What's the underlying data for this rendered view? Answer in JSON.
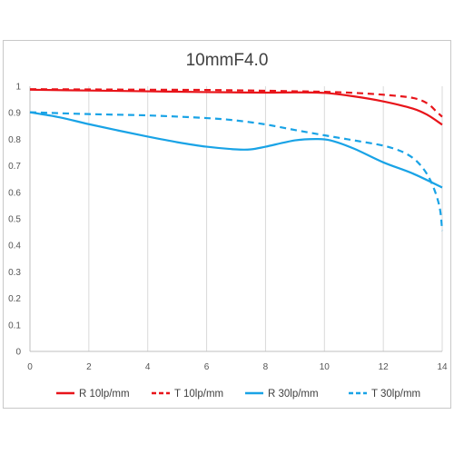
{
  "chart_data": {
    "type": "line",
    "title": "10mmF4.0",
    "xlabel": "",
    "ylabel": "",
    "xlim": [
      0,
      14
    ],
    "ylim": [
      0,
      1
    ],
    "x_ticks": [
      "0",
      "2",
      "4",
      "6",
      "8",
      "10",
      "12",
      "14"
    ],
    "y_ticks": [
      "0",
      "0.1",
      "0.2",
      "0.3",
      "0.4",
      "0.5",
      "0.6",
      "0.7",
      "0.8",
      "0.9",
      "1"
    ],
    "grid": "vertical",
    "legend_position": "bottom",
    "series": [
      {
        "name": "R 10lp/mm",
        "color": "#e8141a",
        "style": "solid",
        "points": [
          [
            0,
            0.987
          ],
          [
            2,
            0.984
          ],
          [
            4,
            0.981
          ],
          [
            6,
            0.978
          ],
          [
            7,
            0.977
          ],
          [
            8,
            0.976
          ],
          [
            9,
            0.977
          ],
          [
            10,
            0.975
          ],
          [
            11,
            0.962
          ],
          [
            12,
            0.943
          ],
          [
            13,
            0.916
          ],
          [
            13.5,
            0.892
          ],
          [
            14,
            0.855
          ]
        ]
      },
      {
        "name": "T 10lp/mm",
        "color": "#e8141a",
        "style": "dashed",
        "points": [
          [
            0,
            0.989
          ],
          [
            2,
            0.988
          ],
          [
            4,
            0.987
          ],
          [
            6,
            0.986
          ],
          [
            8,
            0.983
          ],
          [
            10,
            0.979
          ],
          [
            11,
            0.975
          ],
          [
            12,
            0.968
          ],
          [
            13,
            0.956
          ],
          [
            13.5,
            0.935
          ],
          [
            13.8,
            0.905
          ],
          [
            14,
            0.885
          ]
        ]
      },
      {
        "name": "R 30lp/mm",
        "color": "#19a3e6",
        "style": "solid",
        "points": [
          [
            0,
            0.902
          ],
          [
            1,
            0.883
          ],
          [
            2,
            0.857
          ],
          [
            3,
            0.833
          ],
          [
            4,
            0.81
          ],
          [
            5,
            0.789
          ],
          [
            6,
            0.772
          ],
          [
            7,
            0.762
          ],
          [
            7.5,
            0.762
          ],
          [
            8,
            0.772
          ],
          [
            9,
            0.796
          ],
          [
            9.7,
            0.801
          ],
          [
            10.2,
            0.796
          ],
          [
            11,
            0.765
          ],
          [
            12,
            0.713
          ],
          [
            13,
            0.671
          ],
          [
            14,
            0.618
          ]
        ]
      },
      {
        "name": "T 30lp/mm",
        "color": "#19a3e6",
        "style": "dashed",
        "points": [
          [
            0,
            0.902
          ],
          [
            2,
            0.895
          ],
          [
            4,
            0.89
          ],
          [
            6,
            0.88
          ],
          [
            7,
            0.871
          ],
          [
            8,
            0.856
          ],
          [
            9,
            0.835
          ],
          [
            10,
            0.815
          ],
          [
            11,
            0.796
          ],
          [
            12,
            0.776
          ],
          [
            12.7,
            0.75
          ],
          [
            13.2,
            0.71
          ],
          [
            13.6,
            0.645
          ],
          [
            13.9,
            0.55
          ],
          [
            14,
            0.455
          ]
        ]
      }
    ]
  }
}
